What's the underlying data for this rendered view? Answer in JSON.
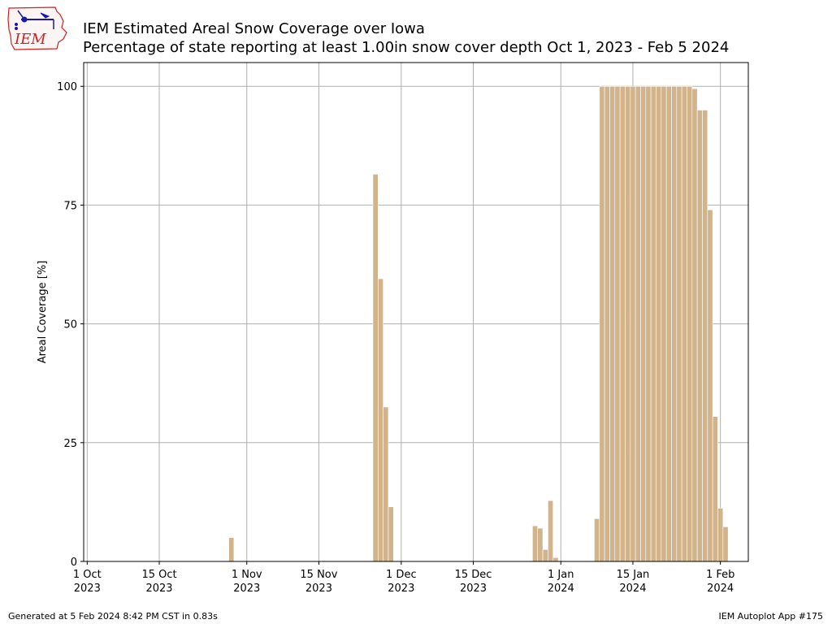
{
  "header": {
    "title": "IEM Estimated Areal Snow Coverage over Iowa",
    "subtitle": "Percentage of state reporting at least 1.00in snow cover depth Oct 1, 2023 - Feb 5 2024",
    "logo_text": "IEM"
  },
  "footer": {
    "generated": "Generated at 5 Feb 2024 8:42 PM CST in 0.83s",
    "app": "IEM Autoplot App #175"
  },
  "colors": {
    "bar": "#d2b48c",
    "grid": "#b0b0b0",
    "logo_red": "#cc2222",
    "logo_blue": "#1a1aa8"
  },
  "chart_data": {
    "type": "bar",
    "title": "",
    "xlabel": "",
    "ylabel": "Areal Coverage [%]",
    "ylim": [
      0,
      105
    ],
    "yticks": [
      0,
      25,
      50,
      75,
      100
    ],
    "xlim": [
      "2023-10-01",
      "2024-02-07"
    ],
    "xticks": [
      {
        "date": "2023-10-01",
        "label1": "1 Oct",
        "label2": "2023"
      },
      {
        "date": "2023-10-15",
        "label1": "15 Oct",
        "label2": "2023"
      },
      {
        "date": "2023-11-01",
        "label1": "1 Nov",
        "label2": "2023"
      },
      {
        "date": "2023-11-15",
        "label1": "15 Nov",
        "label2": "2023"
      },
      {
        "date": "2023-12-01",
        "label1": "1 Dec",
        "label2": "2023"
      },
      {
        "date": "2023-12-15",
        "label1": "15 Dec",
        "label2": "2023"
      },
      {
        "date": "2024-01-01",
        "label1": "1 Jan",
        "label2": "2024"
      },
      {
        "date": "2024-01-15",
        "label1": "15 Jan",
        "label2": "2024"
      },
      {
        "date": "2024-02-01",
        "label1": "1 Feb",
        "label2": "2024"
      }
    ],
    "grid": true,
    "bars": [
      {
        "date": "2023-10-29",
        "value": 5
      },
      {
        "date": "2023-11-26",
        "value": 81.5
      },
      {
        "date": "2023-11-27",
        "value": 59.5
      },
      {
        "date": "2023-11-28",
        "value": 32.5
      },
      {
        "date": "2023-11-29",
        "value": 11.5
      },
      {
        "date": "2023-12-27",
        "value": 7.5
      },
      {
        "date": "2023-12-28",
        "value": 7
      },
      {
        "date": "2023-12-29",
        "value": 2.5
      },
      {
        "date": "2023-12-30",
        "value": 12.8
      },
      {
        "date": "2023-12-31",
        "value": 0.8
      },
      {
        "date": "2024-01-08",
        "value": 9
      },
      {
        "date": "2024-01-09",
        "value": 100
      },
      {
        "date": "2024-01-10",
        "value": 100
      },
      {
        "date": "2024-01-11",
        "value": 100
      },
      {
        "date": "2024-01-12",
        "value": 100
      },
      {
        "date": "2024-01-13",
        "value": 100
      },
      {
        "date": "2024-01-14",
        "value": 100
      },
      {
        "date": "2024-01-15",
        "value": 100
      },
      {
        "date": "2024-01-16",
        "value": 100
      },
      {
        "date": "2024-01-17",
        "value": 100
      },
      {
        "date": "2024-01-18",
        "value": 100
      },
      {
        "date": "2024-01-19",
        "value": 100
      },
      {
        "date": "2024-01-20",
        "value": 100
      },
      {
        "date": "2024-01-21",
        "value": 100
      },
      {
        "date": "2024-01-22",
        "value": 100
      },
      {
        "date": "2024-01-23",
        "value": 100
      },
      {
        "date": "2024-01-24",
        "value": 100
      },
      {
        "date": "2024-01-25",
        "value": 100
      },
      {
        "date": "2024-01-26",
        "value": 100
      },
      {
        "date": "2024-01-27",
        "value": 99.5
      },
      {
        "date": "2024-01-28",
        "value": 95
      },
      {
        "date": "2024-01-29",
        "value": 95
      },
      {
        "date": "2024-01-30",
        "value": 74
      },
      {
        "date": "2024-01-31",
        "value": 30.5
      },
      {
        "date": "2024-02-01",
        "value": 11.2
      },
      {
        "date": "2024-02-02",
        "value": 7.3
      }
    ]
  }
}
